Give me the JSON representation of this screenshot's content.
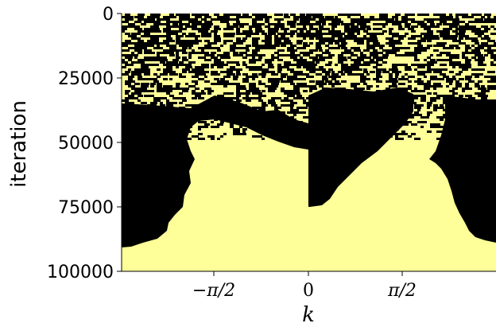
{
  "chart_data": {
    "type": "heatmap",
    "title": "",
    "xlabel": "k",
    "ylabel": "iteration",
    "xlim": [
      -2.356,
      2.356
    ],
    "ylim": [
      100000,
      0
    ],
    "x_ticks": [
      {
        "value": -1.5708,
        "label": "−π/2"
      },
      {
        "value": 0,
        "label": "0"
      },
      {
        "value": 1.5708,
        "label": "π/2"
      }
    ],
    "y_ticks": [
      {
        "value": 0,
        "label": "0"
      },
      {
        "value": 25000,
        "label": "25000"
      },
      {
        "value": 50000,
        "label": "50000"
      },
      {
        "value": 75000,
        "label": "75000"
      },
      {
        "value": 100000,
        "label": "100000"
      }
    ],
    "colors": {
      "state_0": "#000000",
      "state_1": "#ffff99"
    },
    "grid": false,
    "boundary_left_region_end_iteration": [
      [
        -2.356,
        90500
      ],
      [
        -2.2,
        89500
      ],
      [
        -2.0,
        88000
      ],
      [
        -1.9,
        83000
      ],
      [
        -1.75,
        73000
      ],
      [
        -1.6,
        65000
      ],
      [
        -1.45,
        57000
      ],
      [
        -1.3,
        54000
      ],
      [
        -1.0,
        50000
      ],
      [
        -0.7,
        51000
      ],
      [
        -0.35,
        52000
      ],
      [
        -0.05,
        59000
      ]
    ],
    "boundary_center_region_end_iteration": [
      [
        0.0,
        76000
      ],
      [
        0.15,
        74500
      ],
      [
        0.35,
        70000
      ],
      [
        0.7,
        61000
      ],
      [
        1.0,
        53000
      ],
      [
        1.25,
        44000
      ],
      [
        1.35,
        39000
      ]
    ],
    "boundary_right_region_end_iteration": [
      [
        1.5,
        52000
      ],
      [
        1.6,
        57000
      ],
      [
        1.8,
        61000
      ],
      [
        1.9,
        70000
      ],
      [
        2.05,
        80000
      ],
      [
        2.2,
        85000
      ],
      [
        2.356,
        87000
      ]
    ]
  }
}
